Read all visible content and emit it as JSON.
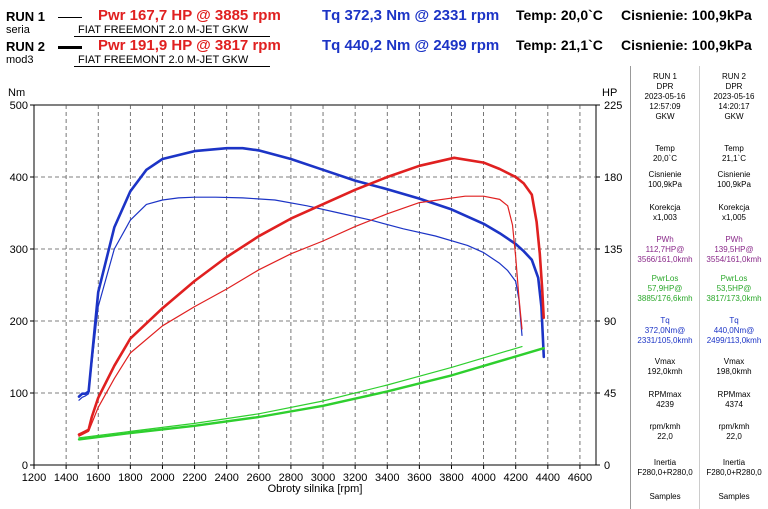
{
  "header": {
    "runs": [
      {
        "id": "RUN 1",
        "sub": "seria",
        "car": "FIAT FREEMONT 2.0 M-JET GKW",
        "pwr": "Pwr  167,7 HP @ 3885 rpm",
        "tq": "Tq 372,3 Nm @ 2331 rpm",
        "temp": "Temp: 20,0`C",
        "cisnienie": "Cisnienie: 100,9kPa"
      },
      {
        "id": "RUN 2",
        "sub": "mod3",
        "car": "FIAT FREEMONT 2.0 M-JET GKW",
        "pwr": "Pwr  191,9 HP @ 3817 rpm",
        "tq": "Tq 440,2 Nm @ 2499 rpm",
        "temp": "Temp: 21,1`C",
        "cisnienie": "Cisnienie: 100,9kPa"
      }
    ]
  },
  "sidebar": {
    "columns": [
      {
        "head": [
          "RUN 1",
          "DPR",
          "2023-05-16",
          "12:57:09",
          "GKW"
        ],
        "temp_label": "Temp",
        "temp": "20,0`C",
        "cis_label": "Cisnienie",
        "cis": "100,9kPa",
        "kor_label": "Korekcja",
        "kor": "x1,003",
        "pwh_label": "PWh",
        "pwh": "112,7HP@",
        "pwh_sub": "3566/161,0kmh",
        "pwrlos_label": "PwrLos",
        "pwrlos": "57,9HP@",
        "pwrlos_sub": "3885/176,6kmh",
        "tq_label": "Tq",
        "tq": "372,0Nm@",
        "tq_sub": "2331/105,0kmh",
        "vmax_label": "Vmax",
        "vmax": "192,0kmh",
        "rpmmax_label": "RPMmax",
        "rpmmax": "4239",
        "rpmkmh_label": "rpm/kmh",
        "rpmkmh": "22,0",
        "inertia_label": "Inertia",
        "inertia": "F280,0+R280,0",
        "samples_label": "Samples"
      },
      {
        "head": [
          "RUN 2",
          "DPR",
          "2023-05-16",
          "14:20:17",
          "GKW"
        ],
        "temp_label": "Temp",
        "temp": "21,1`C",
        "cis_label": "Cisnienie",
        "cis": "100,9kPa",
        "kor_label": "Korekcja",
        "kor": "x1,005",
        "pwh_label": "PWh",
        "pwh": "139,5HP@",
        "pwh_sub": "3554/161,0kmh",
        "pwrlos_label": "PwrLos",
        "pwrlos": "53,5HP@",
        "pwrlos_sub": "3817/173,0kmh",
        "tq_label": "Tq",
        "tq": "440,0Nm@",
        "tq_sub": "2499/113,0kmh",
        "vmax_label": "Vmax",
        "vmax": "198,0kmh",
        "rpmmax_label": "RPMmax",
        "rpmmax": "4374",
        "rpmkmh_label": "rpm/kmh",
        "rpmkmh": "22,0",
        "inertia_label": "Inertia",
        "inertia": "F280,0+R280,0",
        "samples_label": "Samples"
      }
    ]
  },
  "colors": {
    "torque": "#1c34c6",
    "power": "#e02020",
    "loss": "#2ecf2e",
    "grid": "#555555"
  },
  "chart_data": {
    "type": "line",
    "xlabel": "Obroty silnika [rpm]",
    "ylabel_left": "Nm",
    "ylabel_right": "HP",
    "xlim": [
      1200,
      4700
    ],
    "xticks": [
      1200,
      1400,
      1600,
      1800,
      2000,
      2200,
      2400,
      2600,
      2800,
      3000,
      3200,
      3400,
      3600,
      3800,
      4000,
      4200,
      4400,
      4600
    ],
    "ylim_left": [
      0,
      500
    ],
    "yticks_left": [
      0,
      100,
      200,
      300,
      400,
      500
    ],
    "ylim_right": [
      0,
      225
    ],
    "yticks_right": [
      0,
      45,
      90,
      135,
      180,
      225
    ],
    "grid": true,
    "series": [
      {
        "key": "tq2",
        "axis": "left",
        "color_key": "torque",
        "width": 2.6,
        "x": [
          1480,
          1500,
          1520,
          1540,
          1560,
          1600,
          1700,
          1800,
          1900,
          2000,
          2200,
          2400,
          2500,
          2600,
          2800,
          3000,
          3200,
          3400,
          3600,
          3800,
          4000,
          4100,
          4200,
          4250,
          4300,
          4340,
          4360,
          4375
        ],
        "y": [
          95,
          99,
          99,
          102,
          148,
          240,
          330,
          380,
          410,
          425,
          436,
          440,
          440,
          437,
          425,
          410,
          395,
          383,
          370,
          355,
          335,
          322,
          307,
          297,
          285,
          260,
          220,
          150
        ]
      },
      {
        "key": "tq1",
        "axis": "left",
        "color_key": "torque",
        "width": 1.2,
        "x": [
          1480,
          1500,
          1520,
          1540,
          1560,
          1600,
          1700,
          1800,
          1900,
          2000,
          2100,
          2200,
          2331,
          2500,
          2700,
          2900,
          3100,
          3300,
          3500,
          3700,
          3900,
          4000,
          4100,
          4150,
          4200,
          4220,
          4239
        ],
        "y": [
          90,
          94,
          96,
          99,
          140,
          220,
          300,
          340,
          362,
          368,
          371,
          372,
          372,
          371,
          368,
          360,
          350,
          340,
          328,
          318,
          305,
          295,
          280,
          270,
          255,
          230,
          180
        ]
      },
      {
        "key": "pw2",
        "axis": "right",
        "color_key": "power",
        "width": 2.6,
        "x": [
          1480,
          1500,
          1520,
          1540,
          1560,
          1600,
          1700,
          1800,
          2000,
          2200,
          2400,
          2600,
          2800,
          3000,
          3200,
          3400,
          3600,
          3817,
          4000,
          4100,
          4200,
          4250,
          4300,
          4330,
          4350,
          4365,
          4374
        ],
        "y": [
          19,
          20,
          21,
          22,
          30,
          42,
          62,
          79,
          98,
          115,
          130,
          143,
          154,
          163,
          172,
          180,
          187,
          192,
          189,
          185,
          180,
          176,
          169,
          152,
          132,
          110,
          92
        ]
      },
      {
        "key": "pw1",
        "axis": "right",
        "color_key": "power",
        "width": 1.2,
        "x": [
          1480,
          1500,
          1520,
          1540,
          1560,
          1600,
          1700,
          1800,
          2000,
          2200,
          2400,
          2600,
          2800,
          3000,
          3200,
          3400,
          3600,
          3885,
          4000,
          4100,
          4150,
          4180,
          4200,
          4220,
          4239
        ],
        "y": [
          18,
          19,
          20,
          21,
          26,
          36,
          54,
          70,
          87,
          99,
          110,
          122,
          132,
          140,
          149,
          157,
          164,
          168,
          168,
          166,
          162,
          150,
          130,
          105,
          85
        ]
      },
      {
        "key": "loss1",
        "axis": "right",
        "color_key": "loss",
        "width": 1.2,
        "x": [
          1480,
          1800,
          2200,
          2600,
          3000,
          3400,
          3800,
          4239
        ],
        "y": [
          17,
          21,
          26,
          32,
          40,
          50,
          61,
          74
        ]
      },
      {
        "key": "loss2",
        "axis": "right",
        "color_key": "loss",
        "width": 2.4,
        "x": [
          1480,
          1800,
          2200,
          2600,
          3000,
          3400,
          3800,
          4374
        ],
        "y": [
          16,
          20,
          24.5,
          30,
          37,
          46,
          56,
          73
        ]
      }
    ]
  }
}
